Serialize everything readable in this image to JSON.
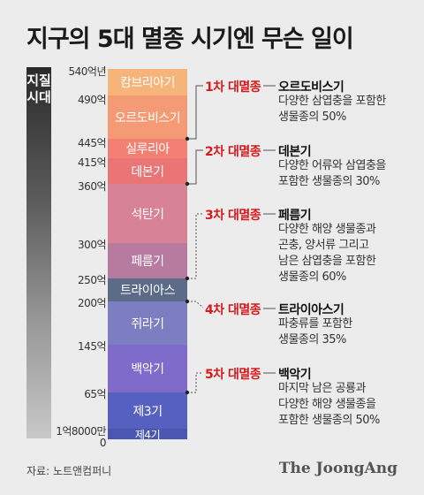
{
  "title": "지구의 5대 멸종 시기엔 무슨 일이",
  "bar_label": "지질시대",
  "ticks": [
    "540억년",
    "490억",
    "445억",
    "415억",
    "360억",
    "300억",
    "250억",
    "200억",
    "145억",
    "65억",
    "1억8000만",
    "0"
  ],
  "periods": [
    {
      "name": "캄브리아기",
      "color": "#f6b47a"
    },
    {
      "name": "오르도비스기",
      "color": "#f49a74"
    },
    {
      "name": "실루리아",
      "color": "#f28173"
    },
    {
      "name": "데본기",
      "color": "#e97577"
    },
    {
      "name": "석탄기",
      "color": "#d88295"
    },
    {
      "name": "페름기",
      "color": "#b87ba0"
    },
    {
      "name": "트라이아스",
      "color": "#5c6b87"
    },
    {
      "name": "쥐라기",
      "color": "#7d7ec1"
    },
    {
      "name": "백악기",
      "color": "#7f6bc9"
    },
    {
      "name": "제3기",
      "color": "#5560c0"
    },
    {
      "name": "제4기",
      "color": "#4a56b2"
    }
  ],
  "extinctions": [
    {
      "label": "1차 대멸종",
      "name": "오르도비스기",
      "desc": [
        "다양한 삼엽충을 포함한",
        "생물종의 50%"
      ]
    },
    {
      "label": "2차 대멸종",
      "name": "데본기",
      "desc": [
        "다양한 어류와 삼엽충을",
        "포함한 생물종의 30%"
      ]
    },
    {
      "label": "3차 대멸종",
      "name": "페름기",
      "desc": [
        "다양한 해양 생물종과",
        "곤충, 양서류 그리고",
        "남은 삼엽충을 포함한",
        "생물종의 60%"
      ]
    },
    {
      "label": "4차 대멸종",
      "name": "트라이아스기",
      "desc": [
        "파충류를 포함한",
        "생물종의 35%"
      ]
    },
    {
      "label": "5차 대멸종",
      "name": "백악기",
      "desc": [
        "마지막 남은 공룡과",
        "다양한 해양 생물종을",
        "포함한 생물종의 50%"
      ]
    }
  ],
  "source": "자료: 노트앤컴퍼니",
  "logo": "The JoongAng"
}
